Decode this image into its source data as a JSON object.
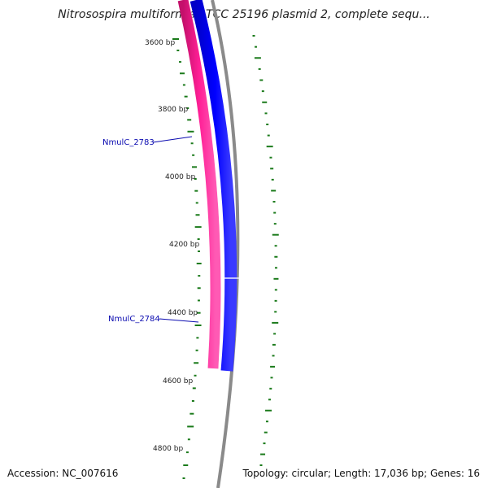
{
  "title": "Nitrosospira multiformis ATCC 25196 plasmid 2, complete sequ...",
  "colors": {
    "forward_cds": "#ff1493",
    "reverse_cds": "#0000ff",
    "backbone": "#888888",
    "gc_skew": "#1a7a1a",
    "gene_label": "#0a0ab0"
  },
  "ruler": {
    "ticks": [
      "3600 bp",
      "3800 bp",
      "4000 bp",
      "4200 bp",
      "4400 bp",
      "4600 bp",
      "4800 bp"
    ]
  },
  "genes": [
    {
      "label": "NmulC_2783"
    },
    {
      "label": "NmulC_2784"
    }
  ],
  "footer": {
    "accession": "Accession: NC_007616",
    "summary": "Topology: circular; Length: 17,036 bp; Genes: 16"
  }
}
